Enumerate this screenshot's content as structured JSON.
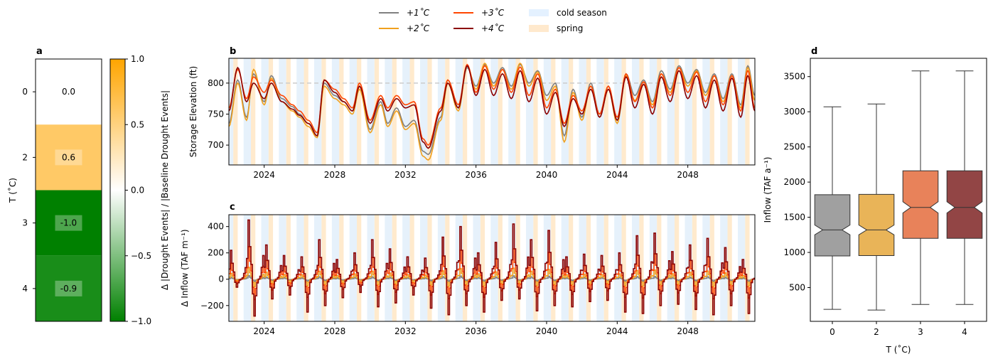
{
  "legend": {
    "entries": [
      {
        "label": "+1$^{\\circ}C$",
        "display": "+1˚C",
        "color": "#808080",
        "kind": "line"
      },
      {
        "label": "+2$^{\\circ}C$",
        "display": "+2˚C",
        "color": "#f0a01e",
        "kind": "line"
      },
      {
        "label": "+3$^{\\circ}C$",
        "display": "+3˚C",
        "color": "#ff4500",
        "kind": "line"
      },
      {
        "label": "+4$^{\\circ}C$",
        "display": "+4˚C",
        "color": "#8b0000",
        "kind": "line"
      },
      {
        "label": "cold season",
        "display": "cold season",
        "color": "#ddeeff",
        "kind": "patch"
      },
      {
        "label": "spring",
        "display": "spring",
        "color": "#ffe4c0",
        "kind": "patch"
      }
    ]
  },
  "panel_labels": {
    "a": "a",
    "b": "b",
    "c": "c",
    "d": "d"
  },
  "chart_data": [
    {
      "panel": "a",
      "type": "heatmap",
      "ylabel": "T ($^\\circ$C)",
      "ylabel_display": "T (˚C)",
      "rows": [
        "0",
        "2",
        "3",
        "4"
      ],
      "values": [
        0.0,
        0.6,
        -1.0,
        -0.9
      ],
      "value_labels": [
        "0.0",
        "0.6",
        "-1.0",
        "-0.9"
      ],
      "colorbar": {
        "label": "Δ |Drought Events| / |Baseline Drought Events|",
        "range": [
          -1.0,
          1.0
        ],
        "ticks": [
          "1.0",
          "0.5",
          "0.0",
          "−0.5",
          "−1.0"
        ],
        "tick_values": [
          1.0,
          0.5,
          0.0,
          -0.5,
          -1.0
        ],
        "colors": {
          "high": "#ffa500",
          "mid": "#ffffff",
          "low": "#008000"
        }
      }
    },
    {
      "panel": "b",
      "type": "line",
      "ylabel": "Storage Elevation (ft)",
      "xlim": [
        2022.0,
        2051.8
      ],
      "ylim": [
        668,
        840
      ],
      "xticks": [
        "2024",
        "2028",
        "2032",
        "2036",
        "2040",
        "2044",
        "2048"
      ],
      "xtick_values": [
        2024,
        2028,
        2032,
        2036,
        2040,
        2044,
        2048
      ],
      "yticks": [
        "700",
        "750",
        "800"
      ],
      "ytick_values": [
        700,
        750,
        800
      ],
      "reference_line": 800,
      "series": [
        {
          "name": "+1$^{\\circ}C$",
          "color": "#808080",
          "x": [
            2022.0,
            2022.5,
            2023.0,
            2023.4,
            2024.0,
            2024.4,
            2025.0,
            2025.6,
            2026.0,
            2026.5,
            2027.0,
            2027.4,
            2028.0,
            2028.5,
            2029.0,
            2029.4,
            2030.0,
            2030.6,
            2031.0,
            2031.5,
            2032.0,
            2032.5,
            2033.0,
            2033.3,
            2034.0,
            2034.4,
            2035.0,
            2035.5,
            2036.0,
            2036.5,
            2037.0,
            2037.5,
            2038.0,
            2038.5,
            2039.0,
            2039.5,
            2040.0,
            2040.5,
            2041.0,
            2041.5,
            2042.0,
            2042.5,
            2043.0,
            2043.5,
            2044.0,
            2044.5,
            2045.0,
            2045.5,
            2046.0,
            2046.5,
            2047.0,
            2047.5,
            2048.0,
            2048.5,
            2049.0,
            2049.5,
            2050.0,
            2050.5,
            2051.0,
            2051.4,
            2051.8
          ],
          "y": [
            735,
            805,
            745,
            815,
            770,
            812,
            775,
            762,
            750,
            735,
            720,
            800,
            780,
            770,
            755,
            795,
            725,
            770,
            735,
            760,
            730,
            740,
            690,
            685,
            745,
            805,
            760,
            825,
            795,
            830,
            800,
            825,
            795,
            830,
            800,
            820,
            780,
            800,
            715,
            790,
            745,
            800,
            750,
            795,
            740,
            815,
            780,
            805,
            770,
            820,
            790,
            828,
            800,
            822,
            785,
            815,
            775,
            815,
            765,
            828,
            780
          ]
        },
        {
          "name": "+2$^{\\circ}C$",
          "color": "#f0a01e",
          "x": [
            2022.0,
            2022.5,
            2023.0,
            2023.4,
            2024.0,
            2024.4,
            2025.0,
            2025.6,
            2026.0,
            2026.5,
            2027.0,
            2027.4,
            2028.0,
            2028.5,
            2029.0,
            2029.4,
            2030.0,
            2030.6,
            2031.0,
            2031.5,
            2032.0,
            2032.5,
            2033.0,
            2033.3,
            2034.0,
            2034.4,
            2035.0,
            2035.5,
            2036.0,
            2036.5,
            2037.0,
            2037.5,
            2038.0,
            2038.5,
            2039.0,
            2039.5,
            2040.0,
            2040.5,
            2041.0,
            2041.5,
            2042.0,
            2042.5,
            2043.0,
            2043.5,
            2044.0,
            2044.5,
            2045.0,
            2045.5,
            2046.0,
            2046.5,
            2047.0,
            2047.5,
            2048.0,
            2048.5,
            2049.0,
            2049.5,
            2050.0,
            2050.5,
            2051.0,
            2051.4,
            2051.8
          ],
          "y": [
            730,
            800,
            740,
            822,
            765,
            808,
            770,
            755,
            745,
            730,
            712,
            795,
            775,
            765,
            750,
            790,
            720,
            765,
            730,
            755,
            725,
            735,
            682,
            676,
            740,
            800,
            755,
            828,
            790,
            832,
            795,
            822,
            790,
            832,
            795,
            818,
            772,
            795,
            705,
            785,
            740,
            795,
            745,
            790,
            735,
            812,
            772,
            802,
            765,
            815,
            785,
            825,
            795,
            820,
            780,
            812,
            770,
            812,
            760,
            825,
            772
          ]
        },
        {
          "name": "+3$^{\\circ}C$",
          "color": "#ff4500",
          "x": [
            2022.0,
            2022.5,
            2023.0,
            2023.4,
            2024.0,
            2024.4,
            2025.0,
            2025.6,
            2026.0,
            2026.5,
            2027.0,
            2027.4,
            2028.0,
            2028.5,
            2029.0,
            2029.4,
            2030.0,
            2030.6,
            2031.0,
            2031.5,
            2032.0,
            2032.5,
            2033.0,
            2033.3,
            2034.0,
            2034.4,
            2035.0,
            2035.5,
            2036.0,
            2036.5,
            2037.0,
            2037.5,
            2038.0,
            2038.5,
            2039.0,
            2039.5,
            2040.0,
            2040.5,
            2041.0,
            2041.5,
            2042.0,
            2042.5,
            2043.0,
            2043.5,
            2044.0,
            2044.5,
            2045.0,
            2045.5,
            2046.0,
            2046.5,
            2047.0,
            2047.5,
            2048.0,
            2048.5,
            2049.0,
            2049.5,
            2050.0,
            2050.5,
            2051.0,
            2051.4,
            2051.8
          ],
          "y": [
            760,
            822,
            775,
            810,
            785,
            805,
            780,
            765,
            755,
            740,
            720,
            805,
            790,
            775,
            760,
            800,
            740,
            780,
            760,
            780,
            765,
            770,
            710,
            700,
            760,
            805,
            765,
            830,
            785,
            828,
            790,
            822,
            785,
            826,
            780,
            815,
            760,
            790,
            735,
            780,
            755,
            795,
            750,
            795,
            745,
            815,
            770,
            802,
            760,
            815,
            780,
            825,
            785,
            818,
            770,
            812,
            765,
            812,
            755,
            820,
            760
          ]
        },
        {
          "name": "+4$^{\\circ}C$",
          "color": "#8b0000",
          "x": [
            2022.0,
            2022.5,
            2023.0,
            2023.4,
            2024.0,
            2024.4,
            2025.0,
            2025.6,
            2026.0,
            2026.5,
            2027.0,
            2027.4,
            2028.0,
            2028.5,
            2029.0,
            2029.4,
            2030.0,
            2030.6,
            2031.0,
            2031.5,
            2032.0,
            2032.5,
            2033.0,
            2033.3,
            2034.0,
            2034.4,
            2035.0,
            2035.5,
            2036.0,
            2036.5,
            2037.0,
            2037.5,
            2038.0,
            2038.5,
            2039.0,
            2039.5,
            2040.0,
            2040.5,
            2041.0,
            2041.5,
            2042.0,
            2042.5,
            2043.0,
            2043.5,
            2044.0,
            2044.5,
            2045.0,
            2045.5,
            2046.0,
            2046.5,
            2047.0,
            2047.5,
            2048.0,
            2048.5,
            2049.0,
            2049.5,
            2050.0,
            2050.5,
            2051.0,
            2051.4,
            2051.8
          ],
          "y": [
            755,
            825,
            770,
            800,
            775,
            800,
            770,
            758,
            748,
            735,
            715,
            805,
            785,
            770,
            755,
            795,
            735,
            775,
            755,
            775,
            760,
            765,
            705,
            695,
            755,
            800,
            760,
            828,
            780,
            822,
            780,
            815,
            775,
            820,
            770,
            808,
            750,
            785,
            730,
            775,
            750,
            790,
            745,
            790,
            740,
            810,
            760,
            798,
            750,
            810,
            770,
            820,
            775,
            812,
            760,
            805,
            755,
            808,
            745,
            812,
            755
          ]
        }
      ],
      "shading": {
        "cold_season_months": "Nov-Mar",
        "spring_months": "Apr-Jun"
      }
    },
    {
      "panel": "c",
      "type": "line",
      "ylabel": "Δ Inflow (TAF m$^{-1}$)",
      "ylabel_display": "Δ Inflow (TAF m⁻¹)",
      "xlim": [
        2022.0,
        2051.8
      ],
      "ylim": [
        -320,
        490
      ],
      "xticks": [
        "2024",
        "2028",
        "2032",
        "2036",
        "2040",
        "2044",
        "2048"
      ],
      "xtick_values": [
        2024,
        2028,
        2032,
        2036,
        2040,
        2044,
        2048
      ],
      "yticks": [
        "400",
        "200",
        "0",
        "−200"
      ],
      "ytick_values": [
        400,
        200,
        0,
        -200
      ],
      "series_names": [
        "+1$^{\\circ}C$",
        "+2$^{\\circ}C$",
        "+3$^{\\circ}C$",
        "+4$^{\\circ}C$"
      ],
      "annual_peaks_4C": [
        220,
        450,
        260,
        180,
        170,
        300,
        150,
        200,
        300,
        230,
        170,
        160,
        320,
        400,
        200,
        280,
        420,
        300,
        370,
        170,
        190,
        180,
        200,
        330,
        350,
        210,
        260,
        310,
        240,
        150
      ],
      "annual_troughs_4C": [
        -60,
        -280,
        -150,
        -120,
        -250,
        -200,
        -140,
        -100,
        -210,
        -180,
        -120,
        -220,
        -270,
        -200,
        -250,
        -160,
        -150,
        -240,
        -200,
        -210,
        -170,
        -160,
        -250,
        -260,
        -200,
        -190,
        -230,
        -270,
        -200,
        -260
      ],
      "scale_factors": {
        "+1$^{\\circ}C$": 0.06,
        "+2$^{\\circ}C$": 0.2,
        "+3$^{\\circ}C$": 0.55,
        "+4$^{\\circ}C$": 1.0
      }
    },
    {
      "panel": "d",
      "type": "box",
      "xlabel": "T ($^\\circ$C)",
      "xlabel_display": "T (˚C)",
      "ylabel": "Inflow (TAF a$^{-1}$)",
      "ylabel_display": "Inflow (TAF a⁻¹)",
      "ylim": [
        20,
        3760
      ],
      "yticks": [
        "500",
        "1000",
        "1500",
        "2000",
        "2500",
        "3000",
        "3500"
      ],
      "ytick_values": [
        500,
        1000,
        1500,
        2000,
        2500,
        3000,
        3500
      ],
      "categories": [
        "0",
        "2",
        "3",
        "4"
      ],
      "boxes": [
        {
          "category": "0",
          "whislo": 190,
          "q1": 950,
          "med": 1320,
          "q3": 1820,
          "whishi": 3070,
          "notch_lo": 1250,
          "notch_hi": 1390,
          "color": "#a0a0a0"
        },
        {
          "category": "2",
          "whislo": 180,
          "q1": 955,
          "med": 1320,
          "q3": 1825,
          "whishi": 3110,
          "notch_lo": 1250,
          "notch_hi": 1390,
          "color": "#e9b458"
        },
        {
          "category": "3",
          "whislo": 260,
          "q1": 1200,
          "med": 1640,
          "q3": 2160,
          "whishi": 3580,
          "notch_lo": 1560,
          "notch_hi": 1720,
          "color": "#e8825a"
        },
        {
          "category": "4",
          "whislo": 260,
          "q1": 1200,
          "med": 1640,
          "q3": 2160,
          "whishi": 3580,
          "notch_lo": 1560,
          "notch_hi": 1720,
          "color": "#924545"
        }
      ]
    }
  ]
}
